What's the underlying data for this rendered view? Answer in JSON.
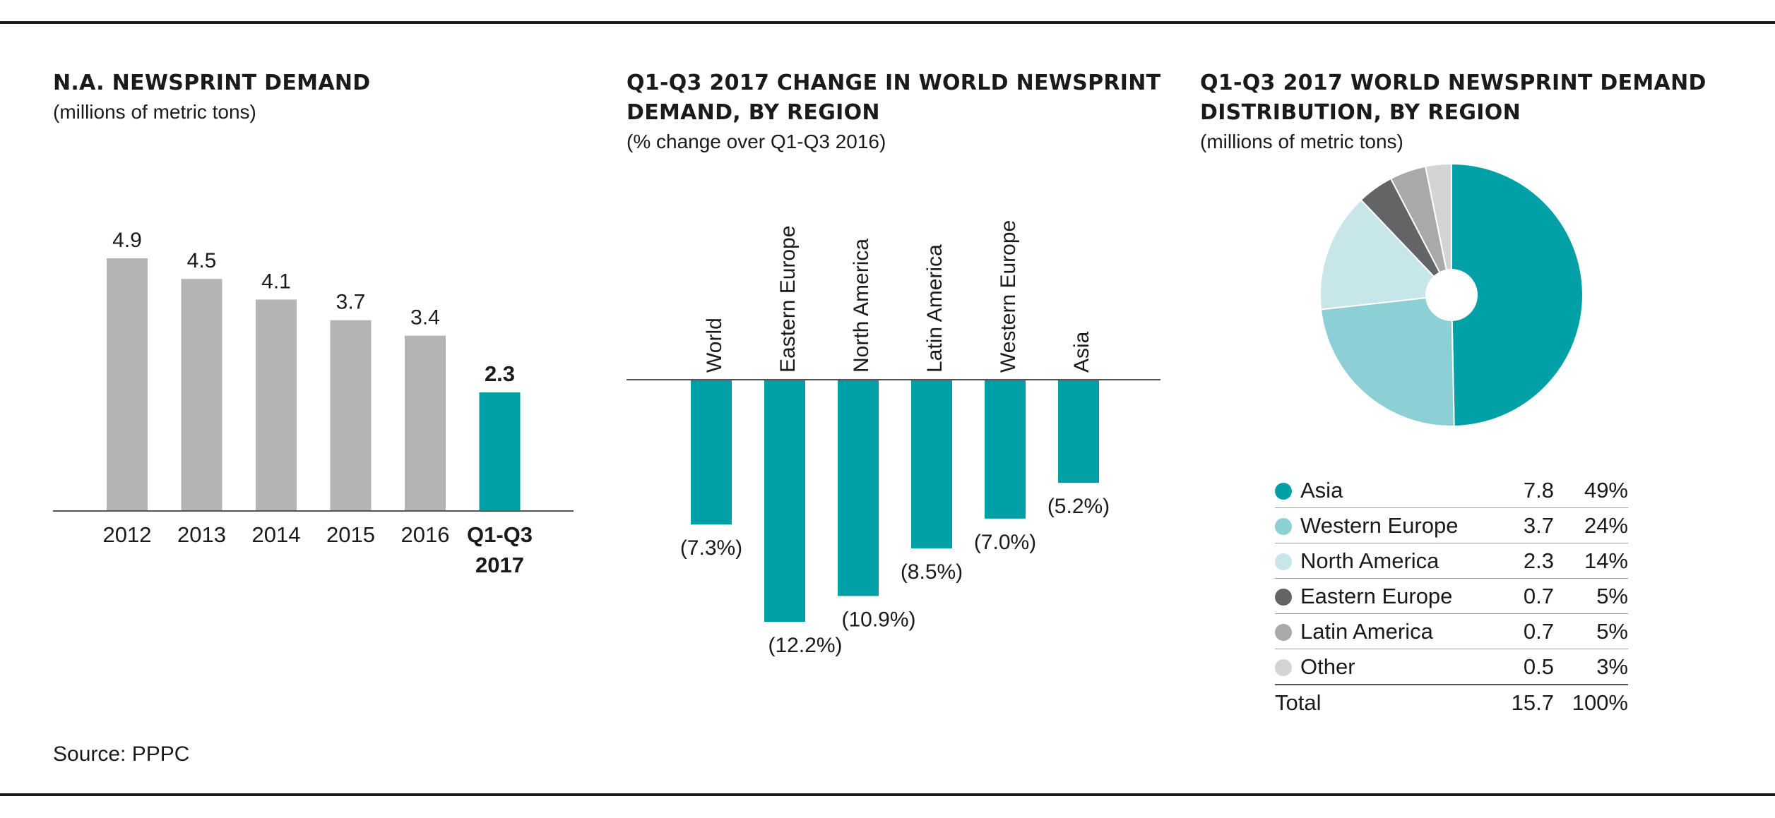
{
  "footer": {
    "source": "Source: PPPC"
  },
  "chart_data": [
    {
      "type": "bar",
      "title": "N.A. NEWSPRINT DEMAND",
      "subtitle": "(millions of metric tons)",
      "categories": [
        "2012",
        "2013",
        "2014",
        "2015",
        "2016",
        "Q1-Q3 2017"
      ],
      "values": [
        4.9,
        4.5,
        4.1,
        3.7,
        3.4,
        2.3
      ],
      "data_labels": [
        "4.9",
        "4.5",
        "4.1",
        "3.7",
        "3.4",
        "2.3"
      ],
      "highlight_index": 5,
      "colors": {
        "default": "#b3b4b6",
        "highlight": "#00a0a6"
      },
      "ylim": [
        0,
        4.9
      ]
    },
    {
      "type": "bar",
      "title": "Q1-Q3 2017 CHANGE IN WORLD NEWSPRINT DEMAND, BY REGION",
      "subtitle": "(% change over Q1-Q3 2016)",
      "categories": [
        "World",
        "Eastern Europe",
        "North America",
        "Latin America",
        "Western Europe",
        "Asia"
      ],
      "values": [
        -7.3,
        -12.2,
        -10.9,
        -8.5,
        -7.0,
        -5.2
      ],
      "data_labels": [
        "(7.3%)",
        "(12.2%)",
        "(10.9%)",
        "(8.5%)",
        "(7.0%)",
        "(5.2%)"
      ],
      "colors": {
        "bar": "#00a0a6"
      },
      "ylim": [
        -12.2,
        0
      ]
    },
    {
      "type": "pie",
      "title": "Q1-Q3 2017 WORLD NEWSPRINT DEMAND DISTRIBUTION, BY REGION",
      "subtitle": "(millions of metric tons)",
      "slices": [
        {
          "label": "Asia",
          "value": 7.8,
          "value_label": "7.8",
          "pct_label": "49%",
          "color": "#00a0a6"
        },
        {
          "label": "Western Europe",
          "value": 3.7,
          "value_label": "3.7",
          "pct_label": "24%",
          "color": "#8ccfd4"
        },
        {
          "label": "North America",
          "value": 2.3,
          "value_label": "2.3",
          "pct_label": "14%",
          "color": "#c7e6ea"
        },
        {
          "label": "Eastern Europe",
          "value": 0.7,
          "value_label": "0.7",
          "pct_label": "5%",
          "color": "#636466"
        },
        {
          "label": "Latin America",
          "value": 0.7,
          "value_label": "0.7",
          "pct_label": "5%",
          "color": "#a8a9ab"
        },
        {
          "label": "Other",
          "value": 0.5,
          "value_label": "0.5",
          "pct_label": "3%",
          "color": "#d3d4d5"
        }
      ],
      "total": {
        "label": "Total",
        "value_label": "15.7",
        "pct_label": "100%"
      }
    }
  ]
}
